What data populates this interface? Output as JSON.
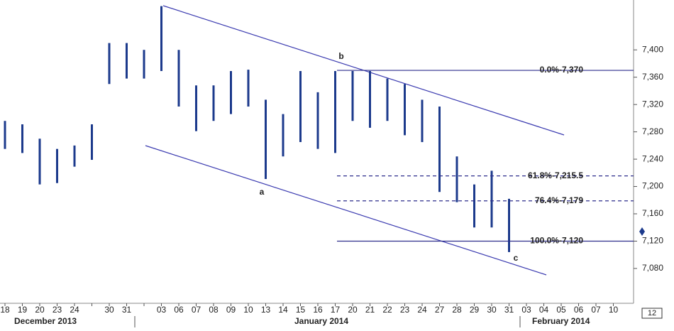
{
  "chart_data": {
    "type": "price-range",
    "categories": [
      "18",
      "19",
      "20",
      "23",
      "24",
      null,
      "30",
      "31",
      null,
      "03",
      "06",
      "07",
      "08",
      "09",
      "10",
      "13",
      "14",
      "15",
      "16",
      "17",
      "20",
      "21",
      "22",
      "23",
      "24",
      "27",
      "28",
      "29",
      "30",
      "31",
      "03",
      "04",
      "05",
      "06",
      "07",
      "10"
    ],
    "months": [
      "December 2013",
      "January 2014",
      "February 2014"
    ],
    "series": [
      {
        "color": "#1c3a8c",
        "high": [
          7296,
          7291,
          7270,
          7255,
          7260,
          7291,
          7410,
          7410,
          7400,
          7464,
          7400,
          7348,
          7348,
          7369,
          7371,
          7327,
          7306,
          7369,
          7338,
          7369,
          7369,
          7369,
          7358,
          7350,
          7327,
          7317,
          7244,
          7203,
          7223,
          7182,
          null,
          null,
          null,
          null,
          null,
          null
        ],
        "low": [
          7255,
          7249,
          7203,
          7205,
          7229,
          7239,
          7350,
          7358,
          7358,
          7369,
          7317,
          7281,
          7296,
          7306,
          7317,
          7211,
          7244,
          7265,
          7255,
          7249,
          7296,
          7286,
          7296,
          7275,
          7265,
          7192,
          7177,
          7140,
          7140,
          7104,
          null,
          null,
          null,
          null,
          null,
          null
        ]
      }
    ],
    "ylim": [
      7029,
      7473
    ],
    "yticks": [
      {
        "value": 7080,
        "label": "7,080"
      },
      {
        "value": 7120,
        "label": "7,120"
      },
      {
        "value": 7160,
        "label": "7,160"
      },
      {
        "value": 7200,
        "label": "7,200"
      },
      {
        "value": 7240,
        "label": "7,240"
      },
      {
        "value": 7280,
        "label": "7,280"
      },
      {
        "value": 7320,
        "label": "7,320"
      },
      {
        "value": 7360,
        "label": "7,360"
      },
      {
        "value": 7400,
        "label": "7,400"
      }
    ],
    "fib_levels": [
      {
        "label": "0.0%-7,370",
        "value": 7370,
        "dashed": false
      },
      {
        "label": "61.8%-7,215.5",
        "value": 7215.5,
        "dashed": true
      },
      {
        "label": "76.4%-7,179",
        "value": 7179,
        "dashed": true
      },
      {
        "label": "100.0%-7,120",
        "value": 7120,
        "dashed": false
      }
    ],
    "wave_labels": [
      "a",
      "b",
      "c"
    ],
    "corner_label": "12"
  }
}
